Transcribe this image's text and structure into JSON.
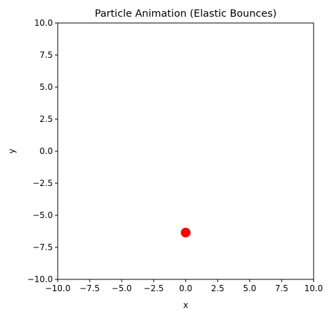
{
  "chart_data": {
    "type": "scatter",
    "title": "Particle Animation (Elastic Bounces)",
    "xlabel": "x",
    "ylabel": "y",
    "xlim": [
      -10,
      10
    ],
    "ylim": [
      -10,
      10
    ],
    "x_ticks": [
      -10.0,
      -7.5,
      -5.0,
      -2.5,
      0.0,
      2.5,
      5.0,
      7.5,
      10.0
    ],
    "y_ticks": [
      -10.0,
      -7.5,
      -5.0,
      -2.5,
      0.0,
      2.5,
      5.0,
      7.5,
      10.0
    ],
    "x_tick_labels": [
      "−10.0",
      "−7.5",
      "−5.0",
      "−2.5",
      "0.0",
      "2.5",
      "5.0",
      "7.5",
      "10.0"
    ],
    "y_tick_labels": [
      "−10.0",
      "−7.5",
      "−5.0",
      "−2.5",
      "0.0",
      "2.5",
      "5.0",
      "7.5",
      "10.0"
    ],
    "grid": false,
    "points": [
      {
        "x": 0.0,
        "y": -6.35,
        "color": "#ff0000"
      }
    ]
  }
}
